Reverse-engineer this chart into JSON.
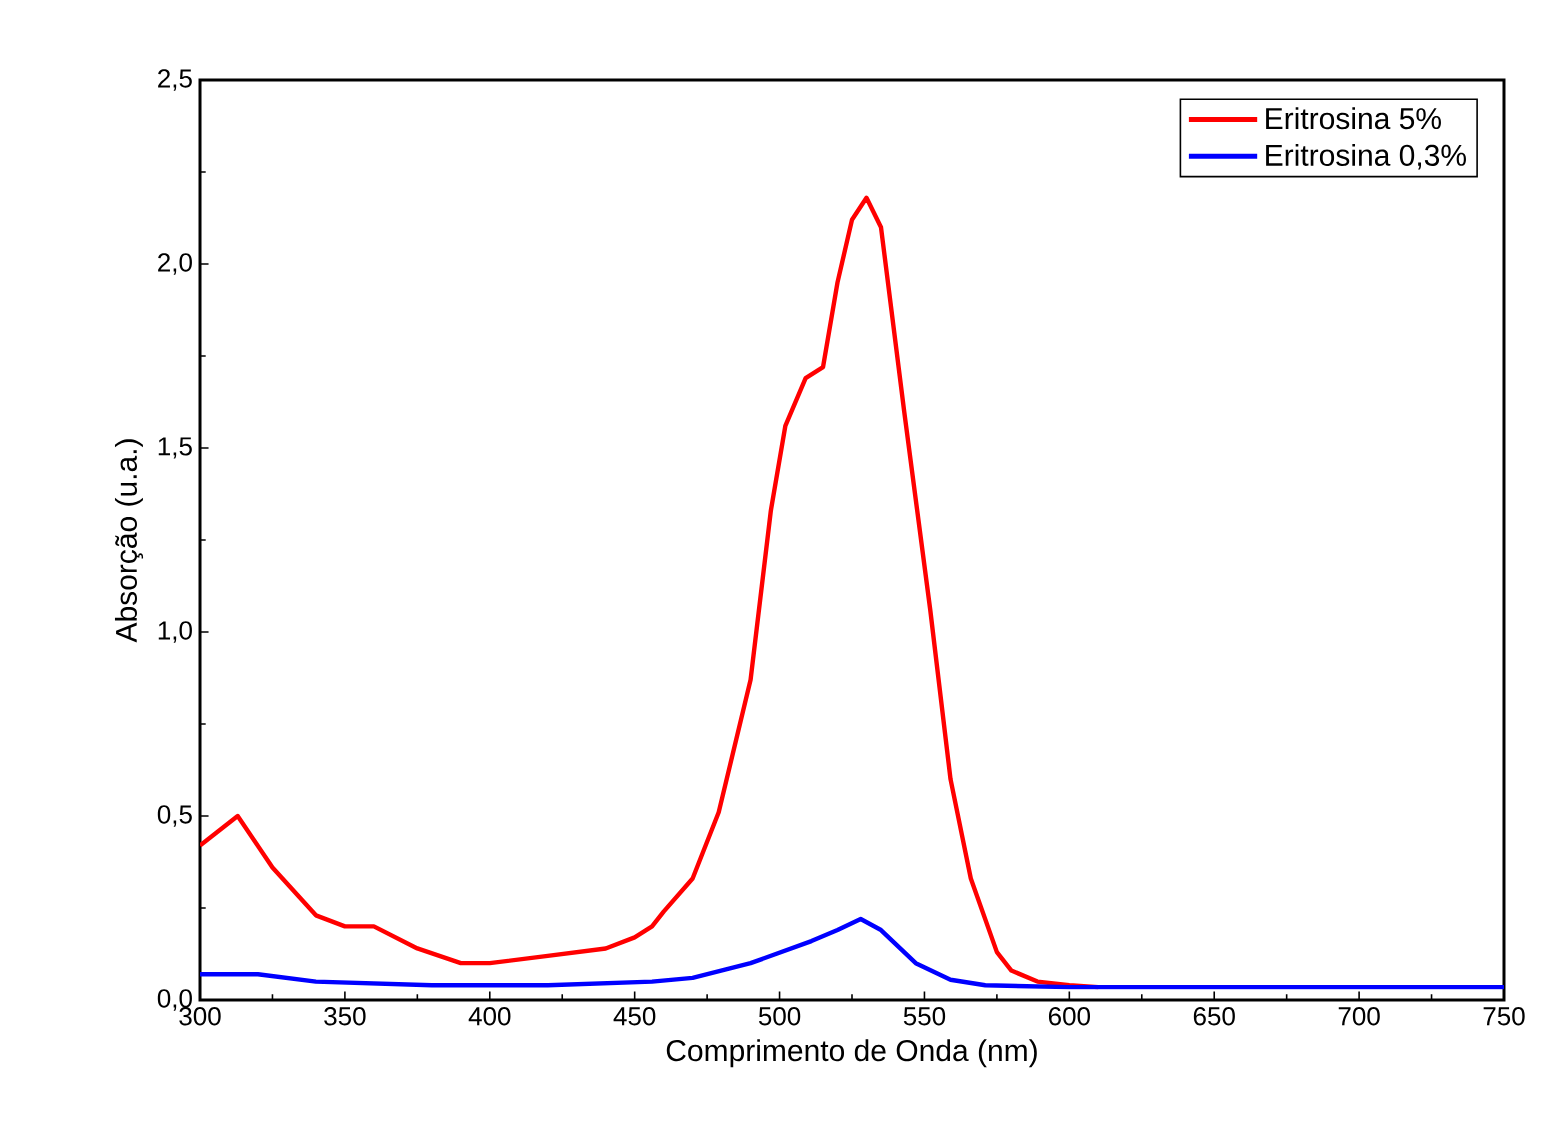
{
  "chart_data": {
    "type": "line",
    "xlabel": "Comprimento de Onda (nm)",
    "ylabel": "Absorção (u.a.)",
    "xlim": [
      300,
      750
    ],
    "xticks": [
      300,
      350,
      400,
      450,
      500,
      550,
      600,
      650,
      700,
      750
    ],
    "ylim": [
      0,
      2.5
    ],
    "yticks": [
      {
        "value": 0,
        "label": "0,0"
      },
      {
        "value": 0.5,
        "label": "0,5"
      },
      {
        "value": 1,
        "label": "1,0"
      },
      {
        "value": 1.5,
        "label": "1,5"
      },
      {
        "value": 2,
        "label": "2,0"
      },
      {
        "value": 2.5,
        "label": "2,5"
      }
    ],
    "legend": "top right",
    "grid": false,
    "series": [
      {
        "name": "Eritrosina 5%",
        "color": "#ff0000",
        "x": [
          300,
          313,
          325,
          340,
          350,
          360,
          375,
          390,
          400,
          420,
          440,
          450,
          456,
          460,
          470,
          479,
          490,
          497,
          502,
          509,
          515,
          520,
          525,
          530,
          535,
          543,
          552,
          559,
          566,
          575,
          580,
          589,
          600,
          610
        ],
        "values": [
          0.42,
          0.5,
          0.36,
          0.23,
          0.2,
          0.2,
          0.14,
          0.1,
          0.1,
          0.12,
          0.14,
          0.17,
          0.2,
          0.24,
          0.33,
          0.51,
          0.87,
          1.33,
          1.56,
          1.69,
          1.72,
          1.95,
          2.12,
          2.18,
          2.1,
          1.6,
          1.06,
          0.6,
          0.33,
          0.13,
          0.08,
          0.05,
          0.04,
          0.035
        ]
      },
      {
        "name": "Eritrosina 0,3%",
        "color": "#0000ff",
        "x": [
          300,
          320,
          340,
          380,
          420,
          456,
          470,
          490,
          511,
          520,
          528,
          535,
          547,
          559,
          571,
          600,
          650,
          700,
          750
        ],
        "values": [
          0.07,
          0.07,
          0.05,
          0.04,
          0.04,
          0.05,
          0.06,
          0.1,
          0.16,
          0.19,
          0.22,
          0.19,
          0.1,
          0.055,
          0.04,
          0.035,
          0.035,
          0.035,
          0.035
        ]
      }
    ]
  }
}
